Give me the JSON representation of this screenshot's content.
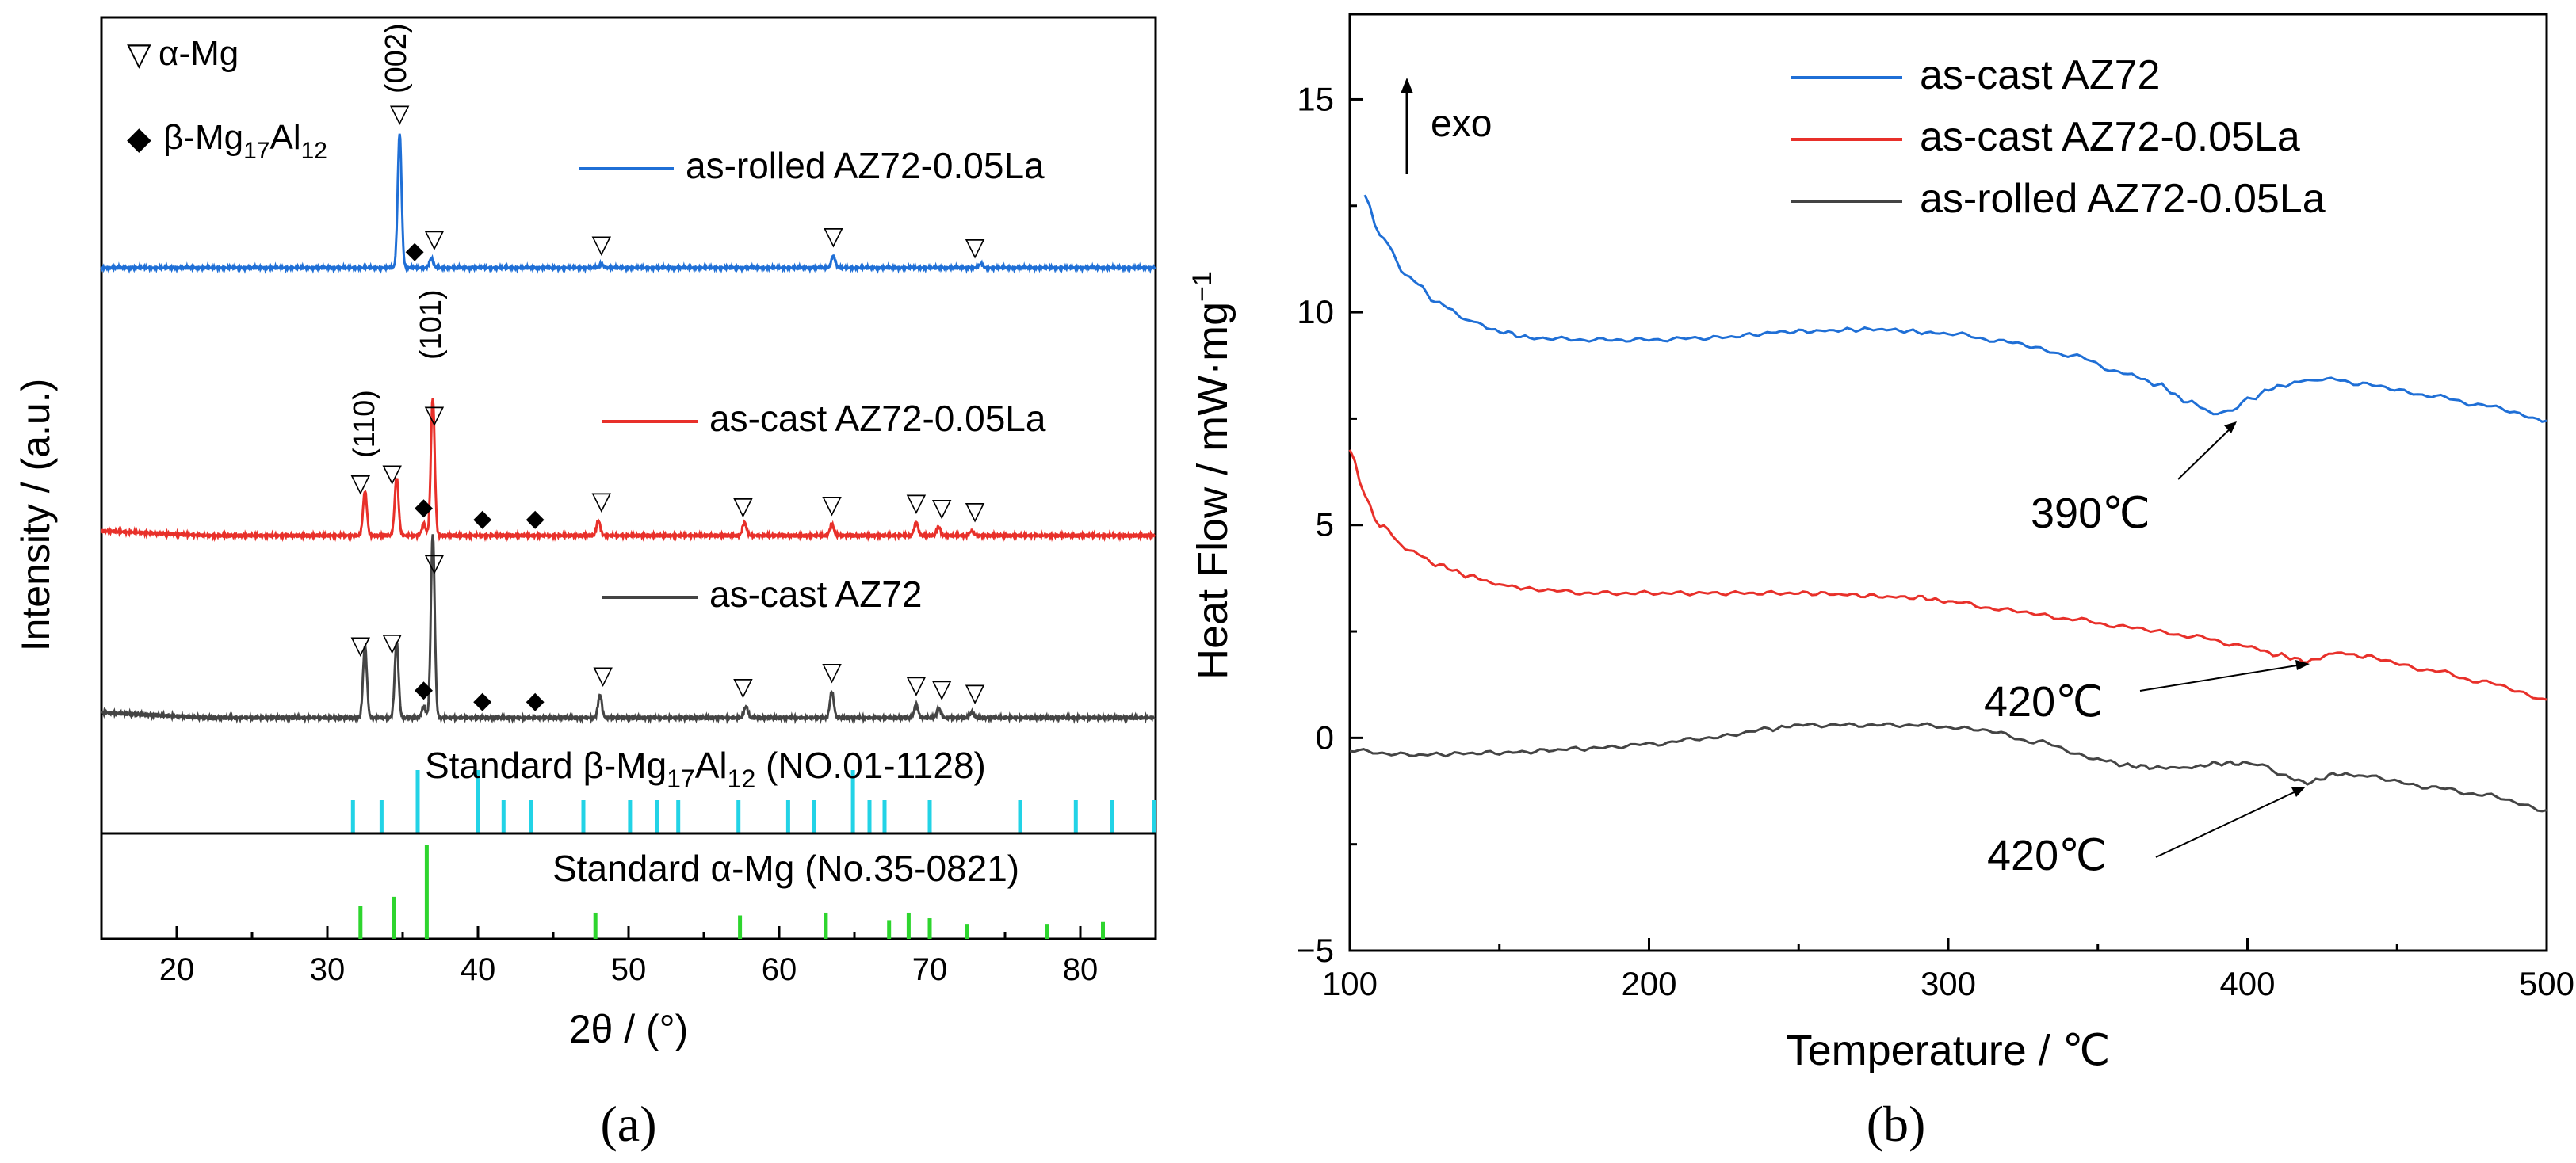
{
  "panel_a": {
    "caption": "(a)",
    "legend_markers": [
      {
        "symbol": "▽",
        "label": "α-Mg"
      },
      {
        "symbol": "◆",
        "label": "β-Mg",
        "sub1": "17",
        "mid": "Al",
        "sub2": "12"
      }
    ],
    "standard_beta_label": {
      "pre": "Standard β-Mg",
      "sub1": "17",
      "mid": "Al",
      "sub2": "12",
      "post": " (NO.01-1128)"
    },
    "standard_alpha_label": "Standard α-Mg (No.35-0821)",
    "peak_labels": {
      "p002": "(002)",
      "p110": "(110)",
      "p101": "(101)"
    }
  },
  "panel_b": {
    "caption": "(b)",
    "exo_label": "exo",
    "annotations": [
      "390℃",
      "420℃",
      "420℃"
    ]
  },
  "chart_data": [
    {
      "type": "line",
      "title": "",
      "xlabel": "2θ / (°)",
      "ylabel": "Intensity / (a.u.)",
      "xlim": [
        15,
        85
      ],
      "xticks": [
        20,
        30,
        40,
        50,
        60,
        70,
        80
      ],
      "series": [
        {
          "name": "as-rolled AZ72-0.05La",
          "color": "#1f6fd6",
          "baseline_frac": 0.75,
          "peaks": [
            [
              34.8,
              1.0
            ],
            [
              36.9,
              0.07
            ],
            [
              48.2,
              0.03
            ],
            [
              63.6,
              0.09
            ],
            [
              73.4,
              0.03
            ]
          ],
          "alpha_markers": [
            34.8,
            37.1,
            48.2,
            63.6,
            73.0
          ],
          "beta_markers": [
            35.8
          ]
        },
        {
          "name": "as-cast AZ72-0.05La",
          "color": "#e8302a",
          "baseline_frac": 0.44,
          "peaks": [
            [
              32.5,
              0.27
            ],
            [
              34.6,
              0.35
            ],
            [
              36.4,
              0.07
            ],
            [
              37.0,
              0.83
            ],
            [
              48.0,
              0.09
            ],
            [
              57.7,
              0.08
            ],
            [
              63.5,
              0.07
            ],
            [
              69.1,
              0.08
            ],
            [
              70.6,
              0.05
            ],
            [
              72.8,
              0.03
            ]
          ],
          "alpha_markers": [
            32.2,
            34.3,
            37.1,
            48.2,
            57.6,
            63.5,
            69.1,
            70.8,
            73.0
          ],
          "beta_markers": [
            36.4,
            40.3,
            43.8
          ]
        },
        {
          "name": "as-cast  AZ72",
          "color": "#444444",
          "baseline_frac": 0.125,
          "peaks": [
            [
              32.5,
              0.38
            ],
            [
              34.6,
              0.4
            ],
            [
              36.4,
              0.06
            ],
            [
              37.0,
              0.97
            ],
            [
              48.1,
              0.12
            ],
            [
              57.8,
              0.06
            ],
            [
              63.5,
              0.14
            ],
            [
              69.1,
              0.07
            ],
            [
              70.6,
              0.05
            ],
            [
              72.8,
              0.03
            ]
          ],
          "alpha_markers": [
            32.2,
            34.3,
            37.1,
            48.3,
            57.6,
            63.5,
            69.1,
            70.8,
            73.0
          ],
          "beta_markers": [
            36.4,
            40.3,
            43.8
          ]
        }
      ],
      "standard_beta_lines": [
        31.7,
        33.6,
        36.0,
        40.0,
        41.7,
        43.5,
        47.0,
        50.1,
        51.9,
        53.3,
        57.3,
        60.6,
        62.3,
        64.9,
        66.0,
        67.0,
        70.0,
        76.0,
        79.7,
        82.1,
        84.9
      ],
      "standard_alpha_lines": [
        [
          32.2,
          0.35
        ],
        [
          34.4,
          0.45
        ],
        [
          36.6,
          1.0
        ],
        [
          47.8,
          0.28
        ],
        [
          57.4,
          0.25
        ],
        [
          63.1,
          0.28
        ],
        [
          67.3,
          0.2
        ],
        [
          68.6,
          0.28
        ],
        [
          70.0,
          0.22
        ],
        [
          72.5,
          0.16
        ],
        [
          77.8,
          0.16
        ],
        [
          81.5,
          0.18
        ]
      ]
    },
    {
      "type": "line",
      "title": "",
      "xlabel": "Temperature / ℃",
      "ylabel": "Heat Flow / mW·mg",
      "ylabel_sup": "−1",
      "xlim": [
        100,
        500
      ],
      "ylim": [
        -5,
        17
      ],
      "xticks": [
        100,
        200,
        300,
        400,
        500
      ],
      "yticks": [
        -5,
        0,
        5,
        10,
        15
      ],
      "legend_position": "top-right",
      "series": [
        {
          "name": "as-cast  AZ72",
          "color": "#1f6fd6",
          "x": [
            105,
            110,
            120,
            130,
            140,
            150,
            160,
            180,
            200,
            220,
            250,
            275,
            300,
            320,
            340,
            360,
            370,
            380,
            390,
            395,
            400,
            410,
            420,
            425,
            440,
            460,
            480,
            500
          ],
          "y": [
            12.8,
            11.8,
            10.8,
            10.2,
            9.8,
            9.55,
            9.4,
            9.35,
            9.35,
            9.4,
            9.55,
            9.6,
            9.5,
            9.3,
            9.0,
            8.55,
            8.3,
            7.9,
            7.6,
            7.7,
            7.95,
            8.25,
            8.4,
            8.45,
            8.3,
            8.05,
            7.8,
            7.45
          ]
        },
        {
          "name": "as-cast AZ72-0.05La",
          "color": "#e8302a",
          "x": [
            100,
            105,
            110,
            120,
            130,
            140,
            150,
            160,
            180,
            200,
            250,
            290,
            300,
            320,
            340,
            360,
            380,
            400,
            410,
            420,
            430,
            440,
            460,
            480,
            500
          ],
          "y": [
            6.8,
            5.7,
            5.0,
            4.4,
            4.05,
            3.8,
            3.6,
            3.5,
            3.4,
            3.4,
            3.4,
            3.3,
            3.2,
            3.0,
            2.8,
            2.6,
            2.4,
            2.15,
            1.95,
            1.8,
            2.0,
            1.9,
            1.6,
            1.3,
            0.9
          ]
        },
        {
          "name": "as-rolled AZ72-0.05La",
          "color": "#444444",
          "x": [
            100,
            120,
            150,
            180,
            200,
            220,
            240,
            250,
            270,
            290,
            310,
            330,
            350,
            360,
            370,
            380,
            390,
            400,
            405,
            410,
            420,
            430,
            440,
            460,
            480,
            500
          ],
          "y": [
            -0.3,
            -0.4,
            -0.35,
            -0.25,
            -0.15,
            0.0,
            0.2,
            0.3,
            0.3,
            0.3,
            0.2,
            -0.1,
            -0.5,
            -0.65,
            -0.7,
            -0.7,
            -0.6,
            -0.6,
            -0.65,
            -0.85,
            -1.05,
            -0.85,
            -0.9,
            -1.15,
            -1.35,
            -1.7
          ]
        }
      ]
    }
  ]
}
